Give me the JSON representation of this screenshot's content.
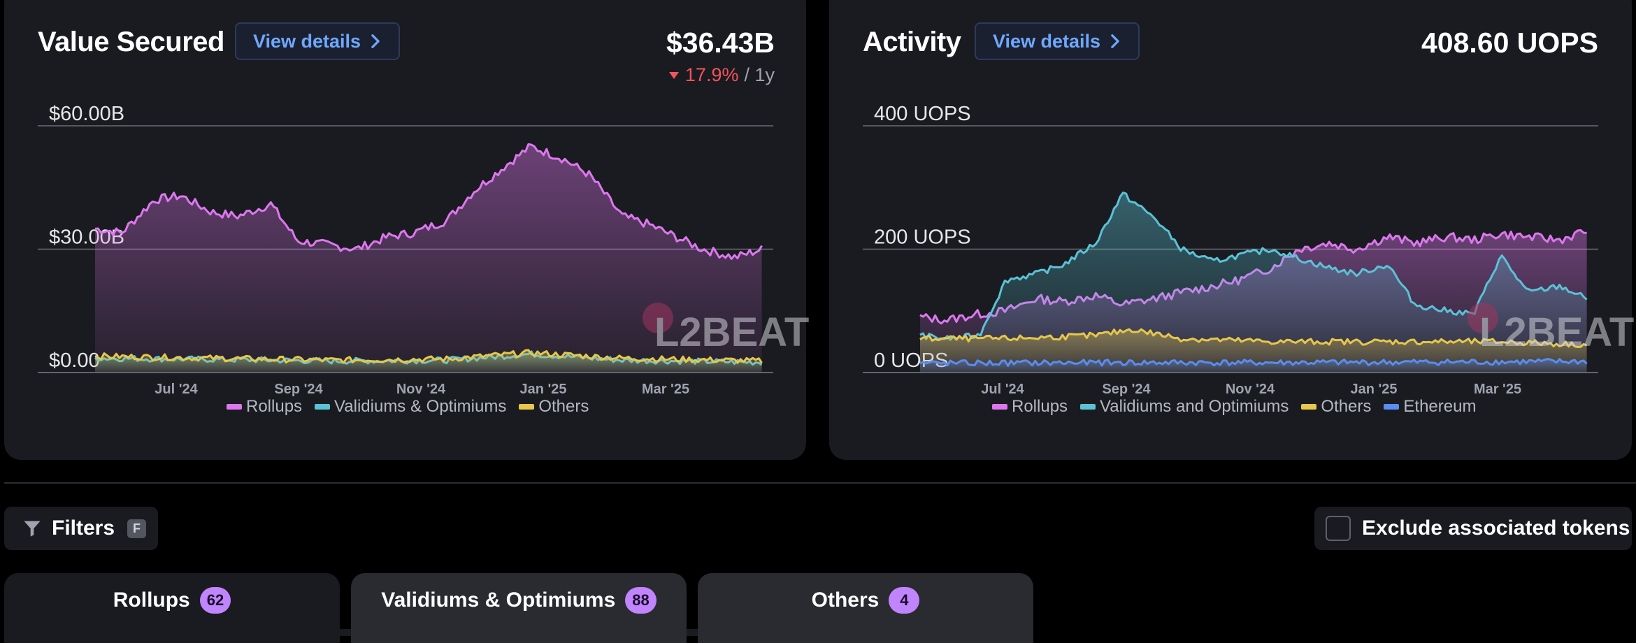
{
  "value_secured": {
    "title": "Value Secured",
    "view_details": "View details",
    "total": "$36.43B",
    "change_pct": "17.9%",
    "change_period": "/ 1y",
    "legend": [
      {
        "label": "Rollups",
        "color": "#dd77ee"
      },
      {
        "label": "Validiums & Optimiums",
        "color": "#5bc2d6"
      },
      {
        "label": "Others",
        "color": "#e6c84a"
      }
    ]
  },
  "activity": {
    "title": "Activity",
    "view_details": "View details",
    "total": "408.60 UOPS",
    "legend": [
      {
        "label": "Rollups",
        "color": "#dd77ee"
      },
      {
        "label": "Validiums and Optimiums",
        "color": "#5bc2d6"
      },
      {
        "label": "Others",
        "color": "#e6c84a"
      },
      {
        "label": "Ethereum",
        "color": "#5b8cf0"
      }
    ]
  },
  "watermark": "L2BEAT",
  "filters": {
    "label": "Filters",
    "shortcut": "F"
  },
  "exclude_label": "Exclude associated tokens",
  "tabs": [
    {
      "label": "Rollups",
      "count": "62"
    },
    {
      "label": "Validiums & Optimiums",
      "count": "88"
    },
    {
      "label": "Others",
      "count": "4"
    }
  ],
  "chart_data": [
    {
      "type": "area",
      "title": "Value Secured",
      "y_unit": "USD billions",
      "y_tick_labels": [
        "$0.00",
        "$30.00B",
        "$60.00B"
      ],
      "y_ticks": [
        0,
        30,
        60
      ],
      "ylim": [
        0,
        60
      ],
      "x_tick_labels": [
        "Jul '24",
        "Sep '24",
        "Nov '24",
        "Jan '25",
        "Mar '25"
      ],
      "x_range": [
        "2024-04",
        "2025-04"
      ],
      "grid": true,
      "legend": "bottom",
      "series": [
        {
          "name": "Rollups",
          "color": "#dd77ee",
          "x": [
            "2024-05-01",
            "2024-05-15",
            "2024-06-01",
            "2024-06-15",
            "2024-07-01",
            "2024-07-15",
            "2024-08-01",
            "2024-08-15",
            "2024-09-01",
            "2024-09-15",
            "2024-10-01",
            "2024-10-15",
            "2024-11-01",
            "2024-11-15",
            "2024-12-01",
            "2024-12-15",
            "2025-01-01",
            "2025-01-15",
            "2025-02-01",
            "2025-02-15",
            "2025-03-01",
            "2025-03-15",
            "2025-04-01",
            "2025-04-15"
          ],
          "values": [
            35,
            34,
            42,
            43,
            39,
            38,
            41,
            32,
            31,
            30,
            33,
            34,
            37,
            44,
            50,
            55,
            52,
            48,
            38,
            36,
            33,
            30,
            28,
            30
          ]
        },
        {
          "name": "Validiums & Optimiums",
          "color": "#5bc2d6",
          "x": [
            "2024-05-01",
            "2024-07-01",
            "2024-09-01",
            "2024-11-01",
            "2024-12-15",
            "2025-02-01",
            "2025-04-15"
          ],
          "values": [
            3.5,
            3.2,
            2.8,
            3.0,
            4.5,
            3.0,
            2.5
          ]
        },
        {
          "name": "Others",
          "color": "#e6c84a",
          "x": [
            "2024-05-01",
            "2024-07-01",
            "2024-09-01",
            "2024-11-01",
            "2024-12-15",
            "2025-02-01",
            "2025-04-15"
          ],
          "values": [
            4,
            3.5,
            3,
            3.3,
            4.8,
            3.5,
            2.8
          ]
        }
      ]
    },
    {
      "type": "line",
      "title": "Activity",
      "y_unit": "UOPS",
      "y_tick_labels": [
        "0 UOPS",
        "200 UOPS",
        "400 UOPS"
      ],
      "y_ticks": [
        0,
        200,
        400
      ],
      "ylim": [
        0,
        400
      ],
      "x_tick_labels": [
        "Jul '24",
        "Sep '24",
        "Nov '24",
        "Jan '25",
        "Mar '25"
      ],
      "x_range": [
        "2024-04",
        "2025-04"
      ],
      "grid": true,
      "legend": "bottom",
      "series": [
        {
          "name": "Rollups",
          "color": "#dd77ee",
          "x": [
            "2024-05-01",
            "2024-05-15",
            "2024-06-01",
            "2024-06-15",
            "2024-07-01",
            "2024-07-15",
            "2024-08-01",
            "2024-08-15",
            "2024-09-01",
            "2024-09-15",
            "2024-10-01",
            "2024-10-15",
            "2024-11-01",
            "2024-11-15",
            "2024-12-01",
            "2024-12-15",
            "2025-01-01",
            "2025-01-15",
            "2025-02-01",
            "2025-02-15",
            "2025-03-01",
            "2025-03-15",
            "2025-04-01",
            "2025-04-15"
          ],
          "values": [
            90,
            85,
            95,
            100,
            120,
            115,
            125,
            110,
            120,
            130,
            140,
            150,
            170,
            200,
            210,
            200,
            220,
            210,
            220,
            215,
            225,
            220,
            215,
            230
          ]
        },
        {
          "name": "Validiums and Optimiums",
          "color": "#5bc2d6",
          "x": [
            "2024-05-01",
            "2024-05-15",
            "2024-06-01",
            "2024-06-15",
            "2024-07-01",
            "2024-07-15",
            "2024-08-01",
            "2024-08-15",
            "2024-09-01",
            "2024-09-15",
            "2024-10-01",
            "2024-10-15",
            "2024-11-01",
            "2024-11-15",
            "2024-12-01",
            "2024-12-15",
            "2025-01-01",
            "2025-01-15",
            "2025-02-01",
            "2025-02-15",
            "2025-03-01",
            "2025-03-15",
            "2025-04-01",
            "2025-04-15"
          ],
          "values": [
            60,
            55,
            60,
            150,
            160,
            175,
            210,
            290,
            250,
            200,
            180,
            190,
            200,
            185,
            170,
            160,
            175,
            110,
            100,
            95,
            190,
            130,
            140,
            120
          ]
        },
        {
          "name": "Others",
          "color": "#e6c84a",
          "x": [
            "2024-05-01",
            "2024-06-15",
            "2024-08-01",
            "2024-08-20",
            "2024-09-15",
            "2024-11-01",
            "2025-01-01",
            "2025-03-01",
            "2025-04-15"
          ],
          "values": [
            55,
            55,
            60,
            70,
            55,
            50,
            50,
            50,
            45
          ]
        },
        {
          "name": "Ethereum",
          "color": "#5b8cf0",
          "x": [
            "2024-05-01",
            "2024-08-01",
            "2024-11-01",
            "2025-02-01",
            "2025-04-15"
          ],
          "values": [
            15,
            16,
            16,
            17,
            18
          ]
        }
      ]
    }
  ]
}
